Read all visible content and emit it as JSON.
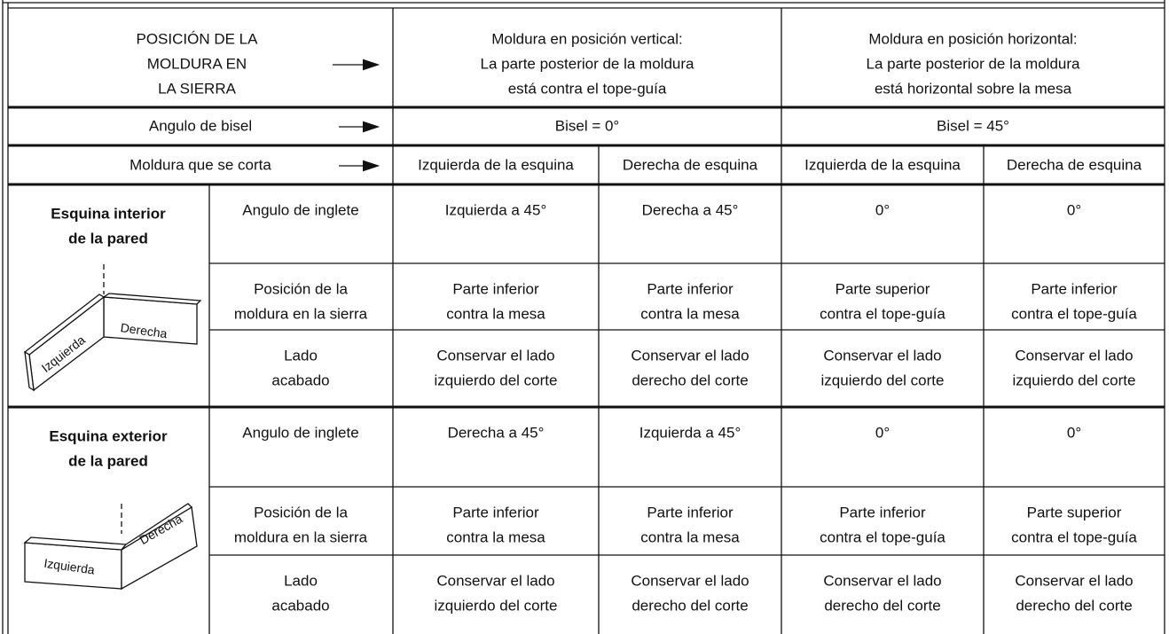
{
  "header": {
    "position_label": [
      "POSICIÓN DE LA",
      "MOLDURA EN",
      "LA SIERRA"
    ],
    "vertical": [
      "Moldura en posición vertical:",
      "La parte posterior de la moldura",
      "está contra el tope-guía"
    ],
    "horizontal": [
      "Moldura en posición horizontal:",
      "La parte posterior de la moldura",
      "está horizontal sobre la mesa"
    ]
  },
  "bevel": {
    "label": "Angulo de bisel",
    "vertical": "Bisel = 0°",
    "horizontal": "Bisel = 45°"
  },
  "cut": {
    "label": "Moldura que se corta",
    "columns": [
      "Izquierda de la esquina",
      "Derecha de esquina",
      "Izquierda de la esquina",
      "Derecha de esquina"
    ]
  },
  "sections": [
    {
      "title": [
        "Esquina interior",
        "de la pared"
      ],
      "diagram_labels": [
        "Izquierda",
        "Derecha"
      ],
      "rows": [
        {
          "label": [
            "Angulo de inglete"
          ],
          "cells": [
            [
              "Izquierda a 45°"
            ],
            [
              "Derecha a 45°"
            ],
            [
              "0°"
            ],
            [
              "0°"
            ]
          ]
        },
        {
          "label": [
            "Posición de la",
            "moldura en la sierra"
          ],
          "cells": [
            [
              "Parte inferior",
              "contra la mesa"
            ],
            [
              "Parte inferior",
              "contra la mesa"
            ],
            [
              "Parte superior",
              "contra el tope-guía"
            ],
            [
              "Parte inferior",
              "contra el tope-guía"
            ]
          ]
        },
        {
          "label": [
            "Lado",
            "acabado"
          ],
          "cells": [
            [
              "Conservar el lado",
              "izquierdo del corte"
            ],
            [
              "Conservar el lado",
              "derecho del corte"
            ],
            [
              "Conservar el lado",
              "izquierdo del corte"
            ],
            [
              "Conservar el lado",
              "izquierdo del corte"
            ]
          ]
        }
      ]
    },
    {
      "title": [
        "Esquina exterior",
        "de la pared"
      ],
      "diagram_labels": [
        "Izquierda",
        "Derecha"
      ],
      "rows": [
        {
          "label": [
            "Angulo de inglete"
          ],
          "cells": [
            [
              "Derecha a 45°"
            ],
            [
              "Izquierda a 45°"
            ],
            [
              "0°"
            ],
            [
              "0°"
            ]
          ]
        },
        {
          "label": [
            "Posición de la",
            "moldura en la sierra"
          ],
          "cells": [
            [
              "Parte inferior",
              "contra la mesa"
            ],
            [
              "Parte inferior",
              "contra la mesa"
            ],
            [
              "Parte inferior",
              "contra el tope-guía"
            ],
            [
              "Parte superior",
              "contra el tope-guía"
            ]
          ]
        },
        {
          "label": [
            "Lado",
            "acabado"
          ],
          "cells": [
            [
              "Conservar el lado",
              "izquierdo del corte"
            ],
            [
              "Conservar el lado",
              "derecho del corte"
            ],
            [
              "Conservar el lado",
              "derecho del corte"
            ],
            [
              "Conservar el lado",
              "derecho del corte"
            ]
          ]
        }
      ]
    }
  ]
}
